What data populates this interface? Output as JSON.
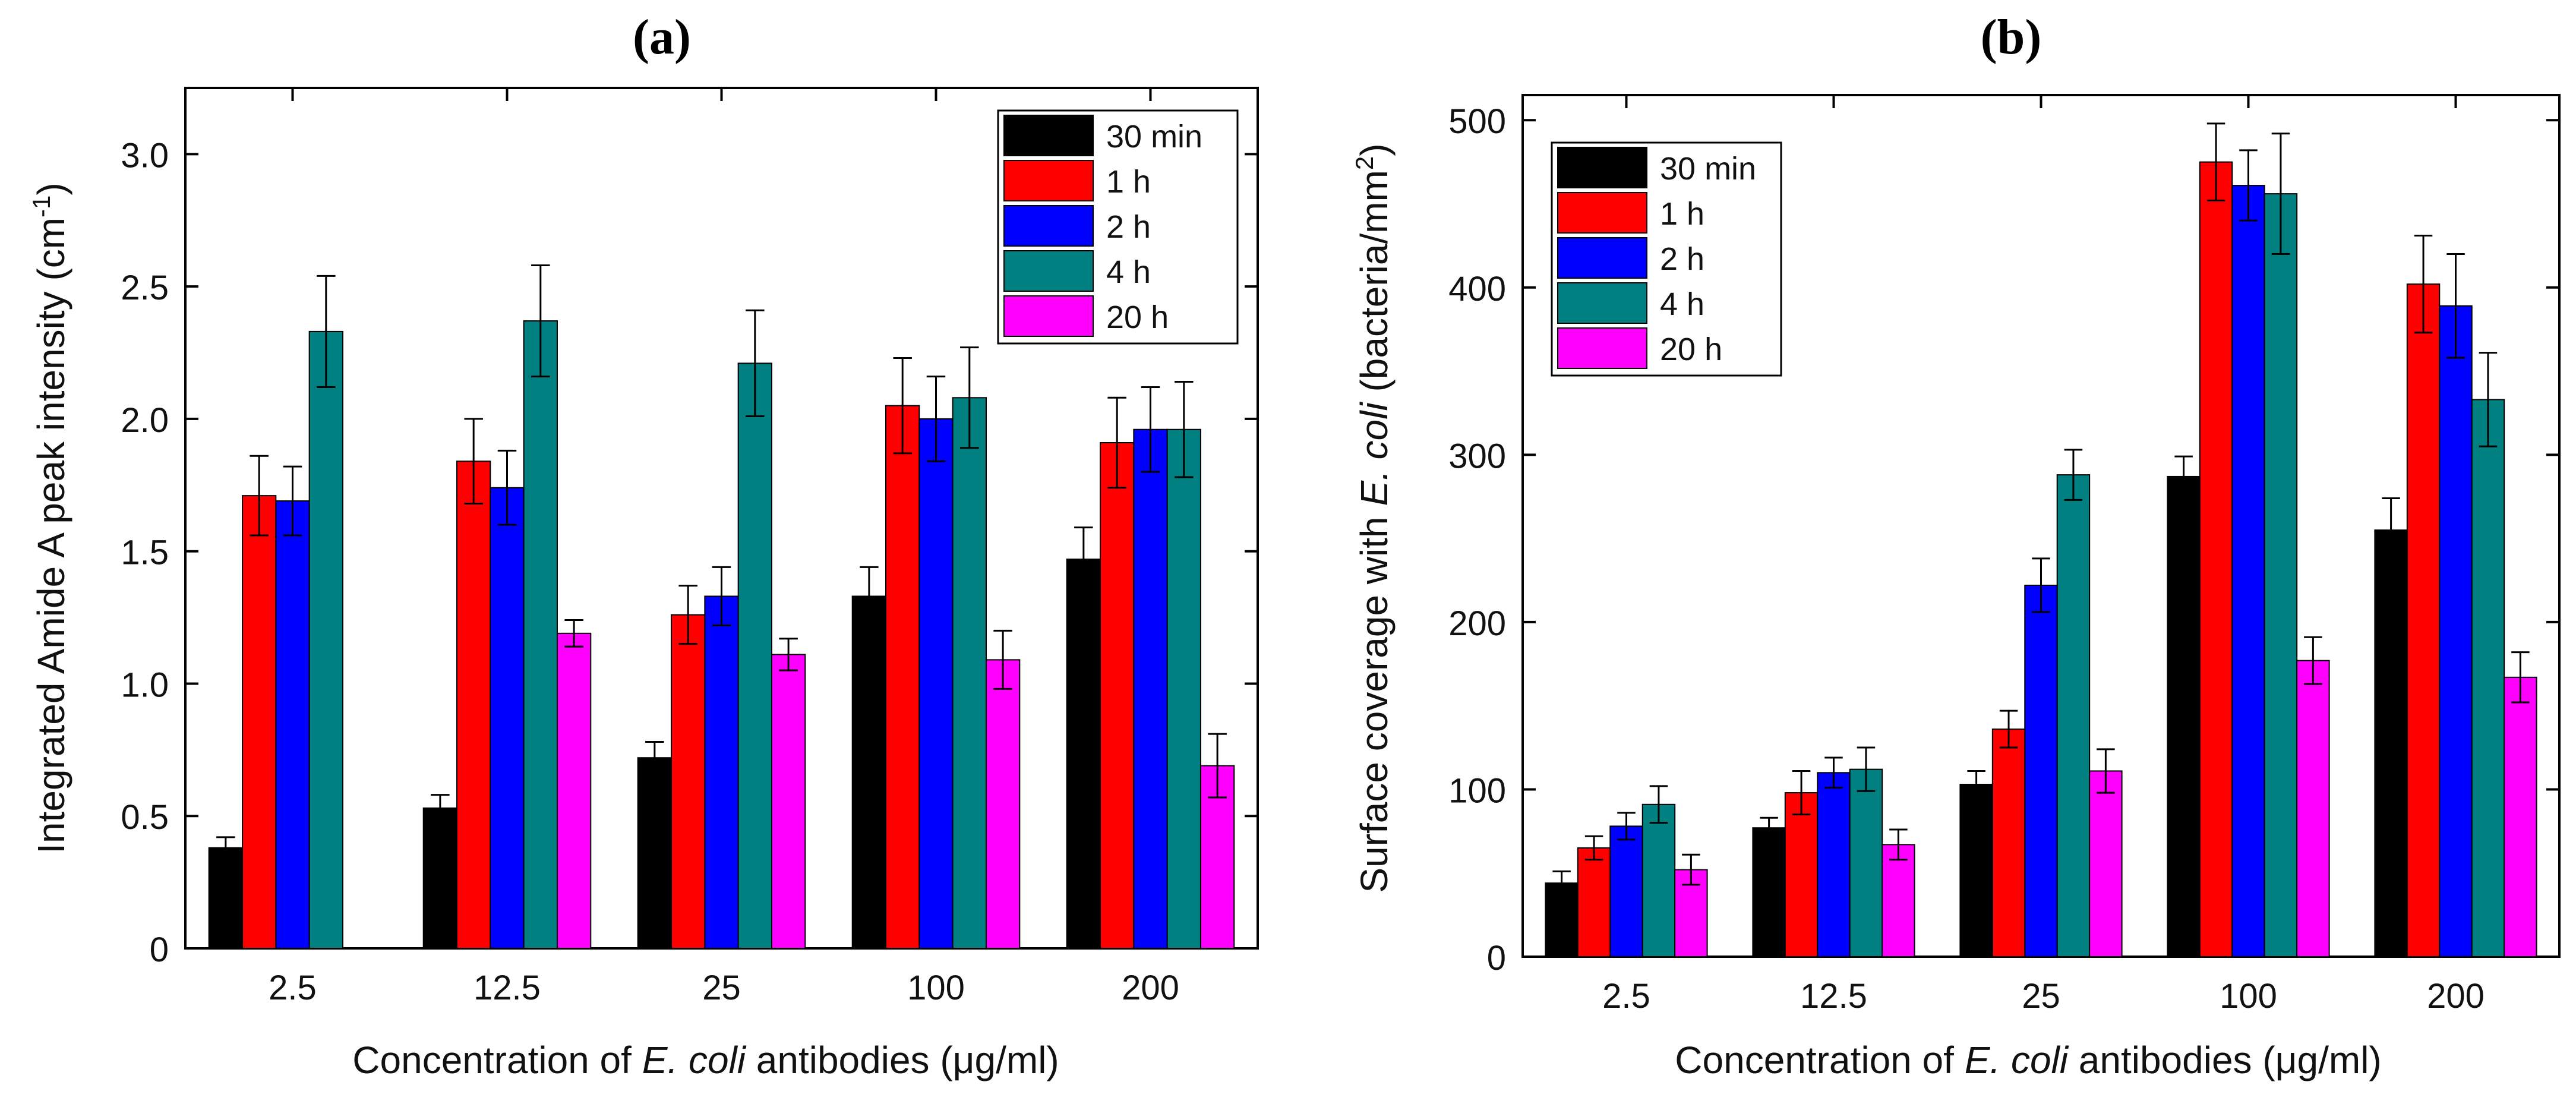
{
  "colors": {
    "30min": "#000000",
    "1h": "#ff0000",
    "2h": "#0000ff",
    "4h": "#008080",
    "20h": "#ff00ff"
  },
  "chart_data": [
    {
      "type": "bar",
      "panel_label": "(a)",
      "title": "",
      "xlabel": "Concentration of E. coli antibodies (μg/ml)",
      "xlabel_parts": {
        "pre": "Concentration of ",
        "italic": "E. coli",
        "post": " antibodies (μg/ml)"
      },
      "ylabel": "Integrated Amide A peak intensity (cm-1)",
      "ylabel_parts": {
        "text": "Integrated Amide A peak intensity (cm",
        "sup": "-1",
        "end": ")"
      },
      "categories": [
        "2.5",
        "12.5",
        "25",
        "100",
        "200"
      ],
      "ylim": [
        0,
        3.25
      ],
      "yticks": [
        0,
        0.5,
        1.0,
        1.5,
        2.0,
        2.5,
        3.0
      ],
      "ytick_labels": [
        "0",
        "0.5",
        "1.0",
        "1.5",
        "2.0",
        "2.5",
        "3.0"
      ],
      "legend_position": "top-right",
      "series": [
        {
          "name": "30 min",
          "color_key": "30min",
          "values": [
            0.38,
            0.53,
            0.72,
            1.33,
            1.47
          ],
          "errors": [
            0.04,
            0.05,
            0.06,
            0.11,
            0.12
          ]
        },
        {
          "name": "1 h",
          "color_key": "1h",
          "values": [
            1.71,
            1.84,
            1.26,
            2.05,
            1.91
          ],
          "errors": [
            0.15,
            0.16,
            0.11,
            0.18,
            0.17
          ]
        },
        {
          "name": "2 h",
          "color_key": "2h",
          "values": [
            1.69,
            1.74,
            1.33,
            2.0,
            1.96
          ],
          "errors": [
            0.13,
            0.14,
            0.11,
            0.16,
            0.16
          ]
        },
        {
          "name": "4 h",
          "color_key": "4h",
          "values": [
            2.33,
            2.37,
            2.21,
            2.08,
            1.96
          ],
          "errors": [
            0.21,
            0.21,
            0.2,
            0.19,
            0.18
          ]
        },
        {
          "name": "20 h",
          "color_key": "20h",
          "values": [
            0,
            1.19,
            1.11,
            1.09,
            0.69
          ],
          "errors": [
            0,
            0.05,
            0.06,
            0.11,
            0.12
          ]
        }
      ]
    },
    {
      "type": "bar",
      "panel_label": "(b)",
      "title": "",
      "xlabel": "Concentration of E. coli antibodies (μg/ml)",
      "xlabel_parts": {
        "pre": "Concentration of ",
        "italic": "E. coli",
        "post": " antibodies (μg/ml)"
      },
      "ylabel": "Surface coverage with E. coli (bacteria/mm2)",
      "ylabel_parts": {
        "pre": "Surface coverage with ",
        "italic": "E. coli",
        "post": " (bacteria/mm",
        "sup": "2",
        "end": ")"
      },
      "categories": [
        "2.5",
        "12.5",
        "25",
        "100",
        "200"
      ],
      "ylim": [
        0,
        515
      ],
      "yticks": [
        0,
        100,
        200,
        300,
        400,
        500
      ],
      "ytick_labels": [
        "0",
        "100",
        "200",
        "300",
        "400",
        "500"
      ],
      "legend_position": "top-left",
      "series": [
        {
          "name": "30 min",
          "color_key": "30min",
          "values": [
            44,
            77,
            103,
            287,
            255
          ],
          "errors": [
            7,
            6,
            8,
            12,
            19
          ]
        },
        {
          "name": "1 h",
          "color_key": "1h",
          "values": [
            65,
            98,
            136,
            475,
            402
          ],
          "errors": [
            7,
            13,
            11,
            23,
            29
          ]
        },
        {
          "name": "2 h",
          "color_key": "2h",
          "values": [
            78,
            110,
            222,
            461,
            389
          ],
          "errors": [
            8,
            9,
            16,
            21,
            31
          ]
        },
        {
          "name": "4 h",
          "color_key": "4h",
          "values": [
            91,
            112,
            288,
            456,
            333
          ],
          "errors": [
            11,
            13,
            15,
            36,
            28
          ]
        },
        {
          "name": "20 h",
          "color_key": "20h",
          "values": [
            52,
            67,
            111,
            177,
            167
          ],
          "errors": [
            9,
            9,
            13,
            14,
            15
          ]
        }
      ]
    }
  ]
}
